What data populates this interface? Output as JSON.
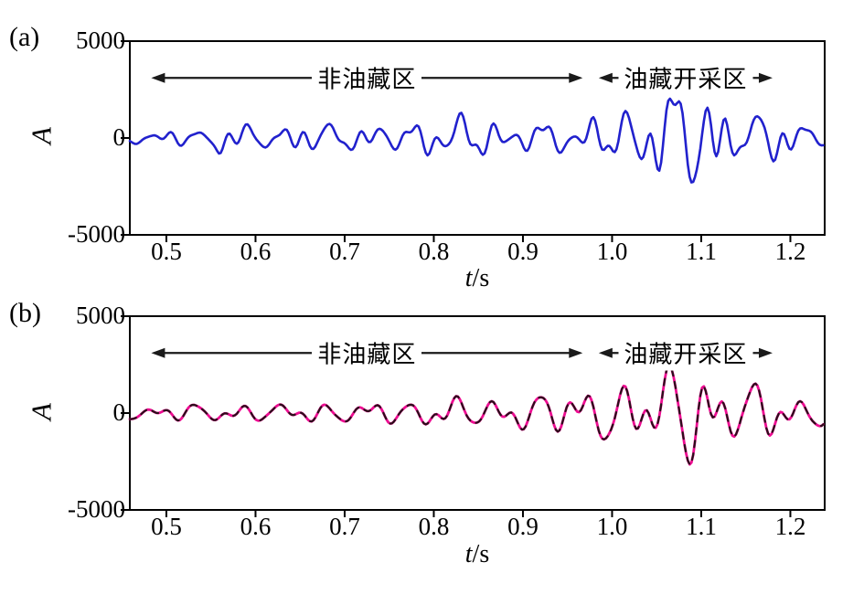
{
  "figure": {
    "panel_a_tag": "(a)",
    "panel_b_tag": "(b)",
    "ylabel": "A",
    "xlabel_var": "t",
    "xlabel_unit": "/s",
    "colors": {
      "axis": "#000000",
      "arrow": "#1a1a1a",
      "trace_a": "#2121cd",
      "trace_b_main": "#ee0d92",
      "trace_b_overlay": "#2a0f1a"
    }
  },
  "chart_data": [
    {
      "panel": "a",
      "type": "line",
      "xlabel": "t/s",
      "ylabel": "A",
      "xlim": [
        0.459,
        1.2385
      ],
      "ylim": [
        -5000,
        5000
      ],
      "grid": false,
      "legend": "none",
      "xticks": [
        0.5,
        0.6,
        0.7,
        0.8,
        0.9,
        1.0,
        1.1,
        1.2
      ],
      "xtick_labels": [
        "0.5",
        "0.6",
        "0.7",
        "0.8",
        "0.9",
        "1.0",
        "1.1",
        "1.2"
      ],
      "yticks": [
        5000,
        0,
        -5000
      ],
      "ytick_labels": [
        "5000",
        "0",
        "-5000"
      ],
      "series": [
        {
          "name": "seismic-trace-raw",
          "color": "#2121cd",
          "width": 2.6,
          "dt": 0.002,
          "norm": 1.6,
          "components": [
            {
              "f": 20.8,
              "a": 1.0,
              "p": 0.3
            },
            {
              "f": 33.5,
              "a": 0.75,
              "p": 2.0
            },
            {
              "f": 46.7,
              "a": 0.55,
              "p": 4.1
            },
            {
              "f": 61.3,
              "a": 0.35,
              "p": 1.4
            },
            {
              "f": 12.5,
              "a": 0.3,
              "p": 5.2
            }
          ],
          "envelope": [
            [
              0.459,
              300
            ],
            [
              0.5,
              320
            ],
            [
              0.545,
              340
            ],
            [
              0.56,
              900
            ],
            [
              0.575,
              520
            ],
            [
              0.6,
              480
            ],
            [
              0.625,
              600
            ],
            [
              0.65,
              650
            ],
            [
              0.68,
              600
            ],
            [
              0.71,
              520
            ],
            [
              0.74,
              560
            ],
            [
              0.77,
              650
            ],
            [
              0.8,
              800
            ],
            [
              0.825,
              950
            ],
            [
              0.845,
              900
            ],
            [
              0.87,
              800
            ],
            [
              0.895,
              650
            ],
            [
              0.92,
              600
            ],
            [
              0.945,
              620
            ],
            [
              0.965,
              700
            ],
            [
              0.985,
              1000
            ],
            [
              1.005,
              1200
            ],
            [
              1.03,
              1300
            ],
            [
              1.05,
              1600
            ],
            [
              1.07,
              2350
            ],
            [
              1.085,
              2250
            ],
            [
              1.1,
              2250
            ],
            [
              1.12,
              1600
            ],
            [
              1.14,
              1150
            ],
            [
              1.16,
              1000
            ],
            [
              1.19,
              900
            ],
            [
              1.21,
              750
            ],
            [
              1.2385,
              550
            ]
          ]
        }
      ],
      "annotations": [
        {
          "text": "非油藏区",
          "style": "double-arrow",
          "t_start": 0.483,
          "t_end": 0.967,
          "y_value": 3100
        },
        {
          "text": "油藏开采区",
          "style": "double-arrow",
          "t_start": 0.985,
          "t_end": 1.18,
          "y_value": 3100
        }
      ]
    },
    {
      "panel": "b",
      "type": "line",
      "xlabel": "t/s",
      "ylabel": "A",
      "xlim": [
        0.459,
        1.2385
      ],
      "ylim": [
        -5000,
        5000
      ],
      "grid": false,
      "legend": "none",
      "xticks": [
        0.5,
        0.6,
        0.7,
        0.8,
        0.9,
        1.0,
        1.1,
        1.2
      ],
      "xtick_labels": [
        "0.5",
        "0.6",
        "0.7",
        "0.8",
        "0.9",
        "1.0",
        "1.1",
        "1.2"
      ],
      "yticks": [
        5000,
        0,
        -5000
      ],
      "ytick_labels": [
        "5000",
        "0",
        "-5000"
      ],
      "series": [
        {
          "name": "seismic-trace-processed",
          "color": "#ee0d92",
          "width": 2.8,
          "dt": 0.002,
          "norm": 1.25,
          "components": [
            {
              "f": 20.8,
              "a": 1.0,
              "p": 0.9
            },
            {
              "f": 33.5,
              "a": 0.6,
              "p": 2.8
            },
            {
              "f": 46.7,
              "a": 0.35,
              "p": 5.0
            },
            {
              "f": 9.5,
              "a": 0.25,
              "p": 1.8
            }
          ],
          "envelope": [
            [
              0.459,
              300
            ],
            [
              0.5,
              300
            ],
            [
              0.53,
              340
            ],
            [
              0.56,
              380
            ],
            [
              0.6,
              330
            ],
            [
              0.64,
              380
            ],
            [
              0.68,
              400
            ],
            [
              0.72,
              380
            ],
            [
              0.75,
              450
            ],
            [
              0.78,
              500
            ],
            [
              0.81,
              600
            ],
            [
              0.835,
              650
            ],
            [
              0.86,
              560
            ],
            [
              0.89,
              600
            ],
            [
              0.915,
              750
            ],
            [
              0.935,
              950
            ],
            [
              0.955,
              900
            ],
            [
              0.975,
              1000
            ],
            [
              1.0,
              1150
            ],
            [
              1.025,
              1250
            ],
            [
              1.05,
              1500
            ],
            [
              1.07,
              2300
            ],
            [
              1.085,
              1900
            ],
            [
              1.1,
              1850
            ],
            [
              1.12,
              1500
            ],
            [
              1.14,
              1250
            ],
            [
              1.16,
              1100
            ],
            [
              1.19,
              950
            ],
            [
              1.21,
              800
            ],
            [
              1.2385,
              600
            ]
          ]
        },
        {
          "name": "seismic-trace-overlay",
          "color": "#2a0f1a",
          "width": 2.2,
          "dash": "7 7",
          "dt": 0.002,
          "norm": 1.25,
          "components": [
            {
              "f": 20.8,
              "a": 1.0,
              "p": 0.9
            },
            {
              "f": 33.5,
              "a": 0.6,
              "p": 2.8
            },
            {
              "f": 46.7,
              "a": 0.35,
              "p": 5.0
            },
            {
              "f": 9.5,
              "a": 0.25,
              "p": 1.8
            }
          ],
          "envelope": [
            [
              0.459,
              300
            ],
            [
              0.5,
              300
            ],
            [
              0.53,
              340
            ],
            [
              0.56,
              380
            ],
            [
              0.6,
              330
            ],
            [
              0.64,
              380
            ],
            [
              0.68,
              400
            ],
            [
              0.72,
              380
            ],
            [
              0.75,
              450
            ],
            [
              0.78,
              500
            ],
            [
              0.81,
              600
            ],
            [
              0.835,
              650
            ],
            [
              0.86,
              560
            ],
            [
              0.89,
              600
            ],
            [
              0.915,
              750
            ],
            [
              0.935,
              950
            ],
            [
              0.955,
              900
            ],
            [
              0.975,
              1000
            ],
            [
              1.0,
              1150
            ],
            [
              1.025,
              1250
            ],
            [
              1.05,
              1500
            ],
            [
              1.07,
              2300
            ],
            [
              1.085,
              1900
            ],
            [
              1.1,
              1850
            ],
            [
              1.12,
              1500
            ],
            [
              1.14,
              1250
            ],
            [
              1.16,
              1100
            ],
            [
              1.19,
              950
            ],
            [
              1.21,
              800
            ],
            [
              1.2385,
              600
            ]
          ]
        }
      ],
      "annotations": [
        {
          "text": "非油藏区",
          "style": "double-arrow",
          "t_start": 0.483,
          "t_end": 0.967,
          "y_value": 3100
        },
        {
          "text": "油藏开采区",
          "style": "double-arrow",
          "t_start": 0.985,
          "t_end": 1.18,
          "y_value": 3100
        }
      ]
    }
  ]
}
